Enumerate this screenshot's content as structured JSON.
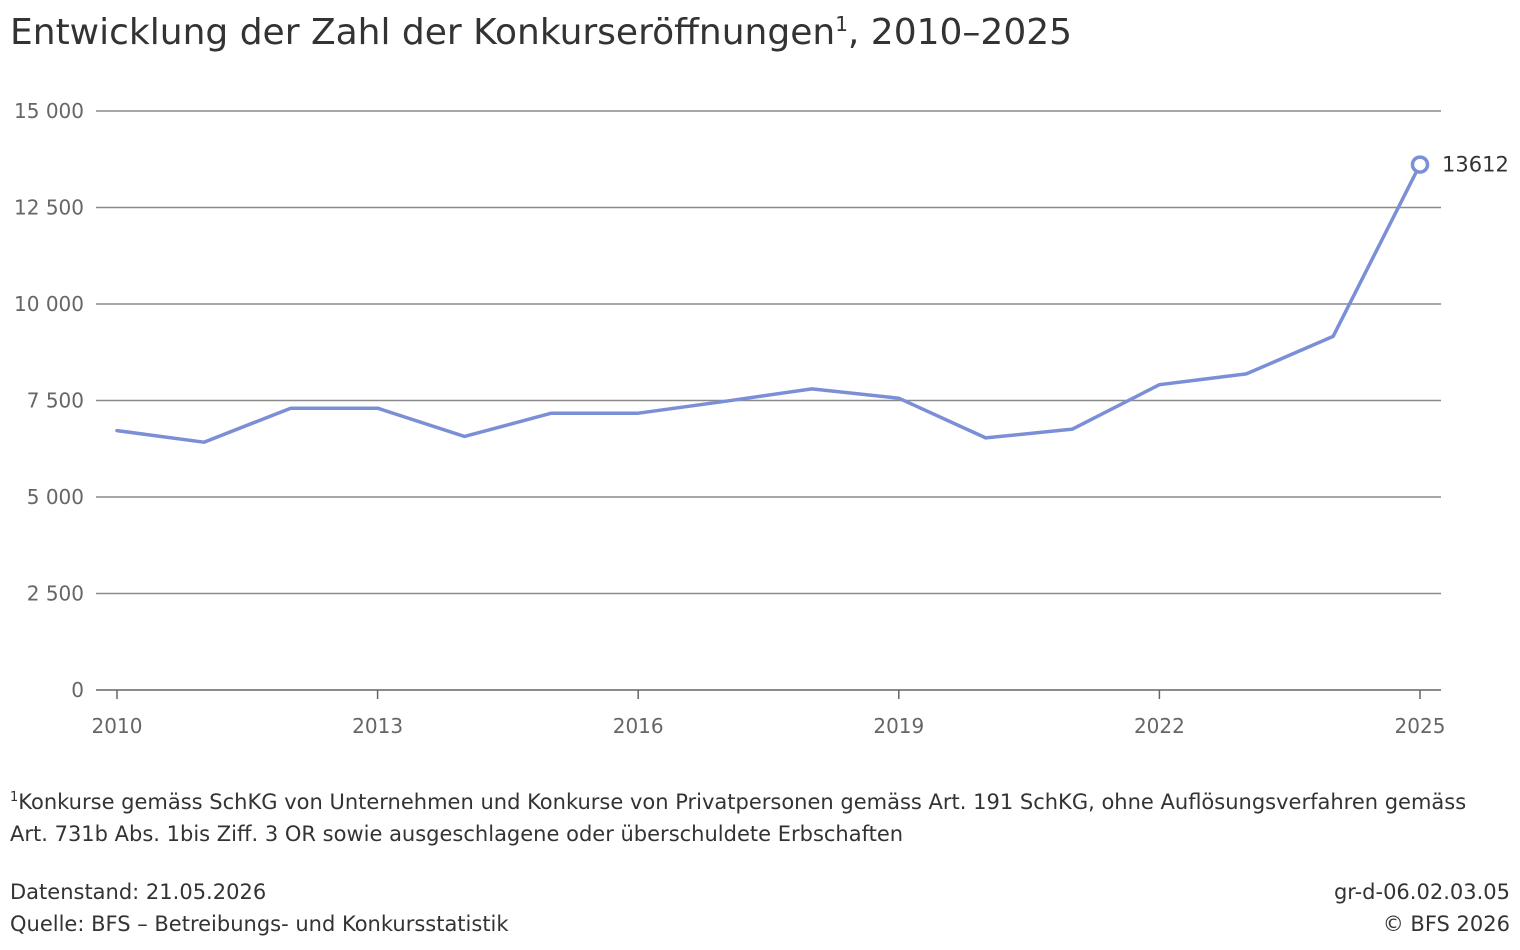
{
  "title": {
    "main": "Entwicklung der Zahl der Konkurseröffnungen",
    "sup": "1",
    "tail": ", 2010–2025"
  },
  "chart_data": {
    "type": "line",
    "title": "Entwicklung der Zahl der Konkurseröffnungen¹, 2010–2025",
    "x": [
      2010,
      2011,
      2012,
      2013,
      2014,
      2015,
      2016,
      2017,
      2018,
      2019,
      2020,
      2021,
      2022,
      2023,
      2024,
      2025
    ],
    "series": [
      {
        "values": [
          6720,
          6420,
          7300,
          7300,
          6570,
          7170,
          7170,
          7480,
          7800,
          7560,
          6530,
          6760,
          7910,
          8190,
          9160,
          13612
        ]
      }
    ],
    "xlabel": "",
    "ylabel": "",
    "ylim": [
      0,
      15000
    ],
    "yticks": [
      0,
      2500,
      5000,
      7500,
      10000,
      12500,
      15000
    ],
    "ytick_labels": [
      "0",
      "2 500",
      "5 000",
      "7 500",
      "10 000",
      "12 500",
      "15 000"
    ],
    "xticks": [
      2010,
      2013,
      2016,
      2019,
      2022,
      2025
    ],
    "xtick_labels": [
      "2010",
      "2013",
      "2016",
      "2019",
      "2022",
      "2025"
    ],
    "annotation": "13612",
    "grid": true,
    "colors": {
      "line": "#7b8fd6",
      "grid": "#8a8a8a",
      "axis": "#666666"
    }
  },
  "footnote": {
    "sup": "1",
    "text": "Konkurse gemäss SchKG von Unternehmen und Konkurse von Privatpersonen gemäss Art. 191 SchKG, ohne Auflösungsverfahren gemäss Art. 731b Abs. 1bis Ziff. 3 OR sowie ausgeschlagene oder überschuldete Erbschaften"
  },
  "meta": {
    "datenstand": "Datenstand: 21.05.2026",
    "quelle": "Quelle: BFS – Betreibungs- und Konkursstatistik",
    "code": "gr-d-06.02.03.05",
    "copyright": "© BFS 2026"
  }
}
